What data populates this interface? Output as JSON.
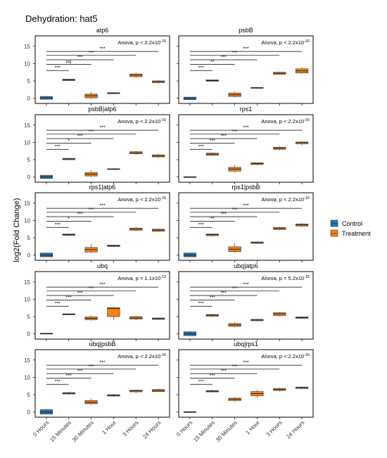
{
  "figure": {
    "title": "Dehydration: hat5",
    "ylabel": "log2(Fold Change)",
    "legend": {
      "position": "right",
      "items": [
        {
          "label": "Control",
          "color": "#1f77b4"
        },
        {
          "label": "Treatment",
          "color": "#ff7f0e"
        }
      ]
    }
  },
  "chart_data": [
    {
      "type": "box",
      "title": "atp6",
      "annotation": "Anova, p < 2.2x10",
      "annotation_exp": "-16",
      "categories": [
        "0 Hours",
        "15 Minutes",
        "30 Minutes",
        "1 Hour",
        "3 Hours",
        "24 Hours"
      ],
      "ylim": [
        -1.5,
        18
      ],
      "yticks": [
        0,
        5,
        10,
        15
      ],
      "boxes": [
        {
          "q1": -0.3,
          "median": 0.1,
          "q3": 0.5,
          "min": -0.4,
          "max": 0.6,
          "group": "Control"
        },
        {
          "q1": 5.1,
          "median": 5.3,
          "q3": 5.5,
          "min": 5.0,
          "max": 5.6,
          "group": "Treatment"
        },
        {
          "q1": 0.1,
          "median": 0.7,
          "q3": 1.2,
          "min": -0.2,
          "max": 1.9,
          "group": "Treatment"
        },
        {
          "q1": 1.3,
          "median": 1.5,
          "q3": 1.6,
          "min": 1.2,
          "max": 1.7,
          "group": "Treatment"
        },
        {
          "q1": 6.2,
          "median": 6.7,
          "q3": 7.0,
          "min": 5.9,
          "max": 7.4,
          "group": "Treatment"
        },
        {
          "q1": 4.5,
          "median": 4.8,
          "q3": 5.0,
          "min": 4.2,
          "max": 5.2,
          "group": "Treatment"
        }
      ],
      "brackets": [
        {
          "to": 1,
          "label": "***",
          "y": 8.0
        },
        {
          "to": 2,
          "label": "ns",
          "y": 9.8
        },
        {
          "to": 3,
          "label": "***",
          "y": 11.1
        },
        {
          "to": 4,
          "label": "***",
          "y": 12.4
        },
        {
          "to": 5,
          "label": "***",
          "y": 13.5
        }
      ]
    },
    {
      "type": "box",
      "title": "psbB",
      "annotation": "Anova, p < 2.2x10",
      "annotation_exp": "-16",
      "categories": [
        "0 Hours",
        "15 Minutes",
        "30 Minutes",
        "1 Hour",
        "3 Hours",
        "24 Hours"
      ],
      "ylim": [
        -1.5,
        18
      ],
      "yticks": [
        0,
        5,
        10,
        15
      ],
      "boxes": [
        {
          "q1": -0.4,
          "median": 0.0,
          "q3": 0.3,
          "min": -0.5,
          "max": 0.4,
          "group": "Control"
        },
        {
          "q1": 4.9,
          "median": 5.1,
          "q3": 5.3,
          "min": 4.8,
          "max": 5.4,
          "group": "Treatment"
        },
        {
          "q1": 0.5,
          "median": 1.0,
          "q3": 1.5,
          "min": 0.2,
          "max": 2.0,
          "group": "Treatment"
        },
        {
          "q1": 2.9,
          "median": 3.0,
          "q3": 3.1,
          "min": 2.8,
          "max": 3.2,
          "group": "Treatment"
        },
        {
          "q1": 6.9,
          "median": 7.2,
          "q3": 7.5,
          "min": 6.8,
          "max": 7.6,
          "group": "Treatment"
        },
        {
          "q1": 7.3,
          "median": 7.9,
          "q3": 8.5,
          "min": 7.0,
          "max": 8.9,
          "group": "Treatment"
        }
      ],
      "brackets": [
        {
          "to": 1,
          "label": "***",
          "y": 8.0
        },
        {
          "to": 2,
          "label": "**",
          "y": 9.8
        },
        {
          "to": 3,
          "label": "***",
          "y": 11.1
        },
        {
          "to": 4,
          "label": "***",
          "y": 12.4
        },
        {
          "to": 5,
          "label": "***",
          "y": 13.5
        }
      ]
    },
    {
      "type": "box",
      "title": "psbB|atp6",
      "annotation": "Anova, p < 2.2x10",
      "annotation_exp": "-16",
      "categories": [
        "0 Hours",
        "15 Minutes",
        "30 Minutes",
        "1 Hour",
        "3 Hours",
        "24 Hours"
      ],
      "ylim": [
        -1.5,
        18
      ],
      "yticks": [
        0,
        5,
        10,
        15
      ],
      "boxes": [
        {
          "q1": -0.4,
          "median": 0.0,
          "q3": 0.5,
          "min": -0.5,
          "max": 0.6,
          "group": "Control"
        },
        {
          "q1": 5.0,
          "median": 5.2,
          "q3": 5.4,
          "min": 4.9,
          "max": 5.5,
          "group": "Treatment"
        },
        {
          "q1": 0.3,
          "median": 0.8,
          "q3": 1.3,
          "min": 0.0,
          "max": 2.0,
          "group": "Treatment"
        },
        {
          "q1": 2.2,
          "median": 2.3,
          "q3": 2.4,
          "min": 2.1,
          "max": 2.5,
          "group": "Treatment"
        },
        {
          "q1": 6.7,
          "median": 7.0,
          "q3": 7.3,
          "min": 6.4,
          "max": 7.5,
          "group": "Treatment"
        },
        {
          "q1": 5.8,
          "median": 6.1,
          "q3": 6.4,
          "min": 5.5,
          "max": 6.7,
          "group": "Treatment"
        }
      ],
      "brackets": [
        {
          "to": 1,
          "label": "***",
          "y": 8.0
        },
        {
          "to": 2,
          "label": "*",
          "y": 9.8
        },
        {
          "to": 3,
          "label": "***",
          "y": 11.1
        },
        {
          "to": 4,
          "label": "***",
          "y": 12.4
        },
        {
          "to": 5,
          "label": "***",
          "y": 13.5
        }
      ]
    },
    {
      "type": "box",
      "title": "rps1",
      "annotation": "Anova, p < 2.2x10",
      "annotation_exp": "-16",
      "categories": [
        "0 Hours",
        "15 Minutes",
        "30 Minutes",
        "1 Hour",
        "3 Hours",
        "24 Hours"
      ],
      "ylim": [
        -1.5,
        18
      ],
      "yticks": [
        0,
        5,
        10,
        15
      ],
      "boxes": [
        {
          "q1": -0.1,
          "median": 0.0,
          "q3": 0.1,
          "min": -0.2,
          "max": 0.2,
          "group": "Control"
        },
        {
          "q1": 6.3,
          "median": 6.6,
          "q3": 6.9,
          "min": 6.1,
          "max": 7.1,
          "group": "Treatment"
        },
        {
          "q1": 1.7,
          "median": 2.3,
          "q3": 2.8,
          "min": 1.4,
          "max": 3.6,
          "group": "Treatment"
        },
        {
          "q1": 3.6,
          "median": 3.9,
          "q3": 4.1,
          "min": 3.4,
          "max": 4.2,
          "group": "Treatment"
        },
        {
          "q1": 8.0,
          "median": 8.3,
          "q3": 8.6,
          "min": 7.7,
          "max": 8.9,
          "group": "Treatment"
        },
        {
          "q1": 9.6,
          "median": 9.9,
          "q3": 10.1,
          "min": 9.2,
          "max": 10.4,
          "group": "Treatment"
        }
      ],
      "brackets": [
        {
          "to": 1,
          "label": "***",
          "y": 8.0
        },
        {
          "to": 2,
          "label": "***",
          "y": 9.8
        },
        {
          "to": 3,
          "label": "***",
          "y": 11.1
        },
        {
          "to": 4,
          "label": "***",
          "y": 12.4
        },
        {
          "to": 5,
          "label": "***",
          "y": 13.5
        }
      ]
    },
    {
      "type": "box",
      "title": "rps1|atp6",
      "annotation": "Anova, p < 2.2x10",
      "annotation_exp": "-16",
      "categories": [
        "0 Hours",
        "15 Minutes",
        "30 Minutes",
        "1 Hour",
        "3 Hours",
        "24 Hours"
      ],
      "ylim": [
        -1.5,
        18
      ],
      "yticks": [
        0,
        5,
        10,
        15
      ],
      "boxes": [
        {
          "q1": -0.5,
          "median": 0.0,
          "q3": 0.6,
          "min": -0.6,
          "max": 0.7,
          "group": "Control"
        },
        {
          "q1": 5.7,
          "median": 5.9,
          "q3": 6.1,
          "min": 5.5,
          "max": 6.2,
          "group": "Treatment"
        },
        {
          "q1": 0.9,
          "median": 1.6,
          "q3": 2.2,
          "min": 0.6,
          "max": 3.2,
          "group": "Treatment"
        },
        {
          "q1": 2.5,
          "median": 2.7,
          "q3": 2.9,
          "min": 2.3,
          "max": 3.0,
          "group": "Treatment"
        },
        {
          "q1": 7.2,
          "median": 7.5,
          "q3": 7.8,
          "min": 6.9,
          "max": 8.1,
          "group": "Treatment"
        },
        {
          "q1": 6.9,
          "median": 7.2,
          "q3": 7.5,
          "min": 6.7,
          "max": 7.7,
          "group": "Treatment"
        }
      ],
      "brackets": [
        {
          "to": 1,
          "label": "***",
          "y": 8.0
        },
        {
          "to": 2,
          "label": "*",
          "y": 9.8
        },
        {
          "to": 3,
          "label": "***",
          "y": 11.1
        },
        {
          "to": 4,
          "label": "***",
          "y": 12.4
        },
        {
          "to": 5,
          "label": "***",
          "y": 13.5
        }
      ]
    },
    {
      "type": "box",
      "title": "rps1|psbB",
      "annotation": "Anova, p < 2.2x10",
      "annotation_exp": "-16",
      "categories": [
        "0 Hours",
        "15 Minutes",
        "30 Minutes",
        "1 Hour",
        "3 Hours",
        "24 Hours"
      ],
      "ylim": [
        -1.5,
        18
      ],
      "yticks": [
        0,
        5,
        10,
        15
      ],
      "boxes": [
        {
          "q1": -0.5,
          "median": 0.0,
          "q3": 0.6,
          "min": -0.6,
          "max": 0.7,
          "group": "Control"
        },
        {
          "q1": 5.6,
          "median": 5.9,
          "q3": 6.1,
          "min": 5.4,
          "max": 6.2,
          "group": "Treatment"
        },
        {
          "q1": 1.0,
          "median": 1.7,
          "q3": 2.4,
          "min": 0.7,
          "max": 3.4,
          "group": "Treatment"
        },
        {
          "q1": 3.4,
          "median": 3.6,
          "q3": 3.8,
          "min": 3.2,
          "max": 3.9,
          "group": "Treatment"
        },
        {
          "q1": 7.4,
          "median": 7.7,
          "q3": 8.0,
          "min": 7.1,
          "max": 8.2,
          "group": "Treatment"
        },
        {
          "q1": 8.4,
          "median": 8.7,
          "q3": 9.0,
          "min": 8.1,
          "max": 9.3,
          "group": "Treatment"
        }
      ],
      "brackets": [
        {
          "to": 1,
          "label": "***",
          "y": 8.0
        },
        {
          "to": 2,
          "label": "**",
          "y": 9.8
        },
        {
          "to": 3,
          "label": "***",
          "y": 11.1
        },
        {
          "to": 4,
          "label": "***",
          "y": 12.4
        },
        {
          "to": 5,
          "label": "***",
          "y": 13.5
        }
      ]
    },
    {
      "type": "box",
      "title": "ubq",
      "annotation": "Anova, p = 1.1x10",
      "annotation_exp": "-13",
      "categories": [
        "0 Hours",
        "15 Minutes",
        "30 Minutes",
        "1 Hour",
        "3 Hours",
        "24 Hours"
      ],
      "ylim": [
        -1.5,
        18
      ],
      "yticks": [
        0,
        5,
        10,
        15
      ],
      "boxes": [
        {
          "q1": 0.0,
          "median": 0.1,
          "q3": 0.2,
          "min": -0.1,
          "max": 0.3,
          "group": "Control"
        },
        {
          "q1": 5.5,
          "median": 5.7,
          "q3": 5.8,
          "min": 5.4,
          "max": 5.9,
          "group": "Treatment"
        },
        {
          "q1": 4.1,
          "median": 4.5,
          "q3": 4.9,
          "min": 3.8,
          "max": 5.3,
          "group": "Treatment"
        },
        {
          "q1": 5.0,
          "median": 7.3,
          "q3": 7.6,
          "min": 4.0,
          "max": 7.9,
          "group": "Treatment"
        },
        {
          "q1": 4.3,
          "median": 4.6,
          "q3": 5.0,
          "min": 4.0,
          "max": 5.2,
          "group": "Treatment"
        },
        {
          "q1": 4.2,
          "median": 4.4,
          "q3": 4.6,
          "min": 4.0,
          "max": 4.8,
          "group": "Treatment"
        }
      ],
      "brackets": [
        {
          "to": 1,
          "label": "***",
          "y": 8.0
        },
        {
          "to": 2,
          "label": "***",
          "y": 9.8
        },
        {
          "to": 3,
          "label": "***",
          "y": 11.1
        },
        {
          "to": 4,
          "label": "***",
          "y": 12.4
        },
        {
          "to": 5,
          "label": "***",
          "y": 13.5
        }
      ]
    },
    {
      "type": "box",
      "title": "ubq|atp6",
      "annotation": "Anova, p = 5.2x10",
      "annotation_exp": "-15",
      "categories": [
        "0 Hours",
        "15 Minutes",
        "30 Minutes",
        "1 Hour",
        "3 Hours",
        "24 Hours"
      ],
      "ylim": [
        -1.5,
        18
      ],
      "yticks": [
        0,
        5,
        10,
        15
      ],
      "boxes": [
        {
          "q1": -0.5,
          "median": 0.0,
          "q3": 0.6,
          "min": -0.6,
          "max": 0.8,
          "group": "Control"
        },
        {
          "q1": 5.1,
          "median": 5.4,
          "q3": 5.6,
          "min": 4.9,
          "max": 5.8,
          "group": "Treatment"
        },
        {
          "q1": 2.2,
          "median": 2.6,
          "q3": 3.0,
          "min": 1.9,
          "max": 3.4,
          "group": "Treatment"
        },
        {
          "q1": 3.8,
          "median": 4.0,
          "q3": 4.2,
          "min": 3.6,
          "max": 4.4,
          "group": "Treatment"
        },
        {
          "q1": 5.3,
          "median": 5.8,
          "q3": 6.1,
          "min": 5.0,
          "max": 6.3,
          "group": "Treatment"
        },
        {
          "q1": 4.5,
          "median": 4.7,
          "q3": 4.9,
          "min": 4.3,
          "max": 5.1,
          "group": "Treatment"
        }
      ],
      "brackets": [
        {
          "to": 1,
          "label": "***",
          "y": 8.0
        },
        {
          "to": 2,
          "label": "***",
          "y": 9.8
        },
        {
          "to": 3,
          "label": "***",
          "y": 11.1
        },
        {
          "to": 4,
          "label": "***",
          "y": 12.4
        },
        {
          "to": 5,
          "label": "***",
          "y": 13.5
        }
      ]
    },
    {
      "type": "box",
      "title": "ubq|psbB",
      "annotation": "Anova, p < 2.2x10",
      "annotation_exp": "-16",
      "categories": [
        "0 Hours",
        "15 Minutes",
        "30 Minutes",
        "1 Hour",
        "3 Hours",
        "24 Hours"
      ],
      "ylim": [
        -1.5,
        18
      ],
      "yticks": [
        0,
        5,
        10,
        15
      ],
      "boxes": [
        {
          "q1": -0.6,
          "median": 0.0,
          "q3": 0.7,
          "min": -0.7,
          "max": 0.9,
          "group": "Control"
        },
        {
          "q1": 5.2,
          "median": 5.4,
          "q3": 5.6,
          "min": 5.0,
          "max": 5.8,
          "group": "Treatment"
        },
        {
          "q1": 2.4,
          "median": 2.8,
          "q3": 3.3,
          "min": 2.0,
          "max": 3.9,
          "group": "Treatment"
        },
        {
          "q1": 4.6,
          "median": 4.8,
          "q3": 5.0,
          "min": 4.4,
          "max": 5.2,
          "group": "Treatment"
        },
        {
          "q1": 5.8,
          "median": 6.1,
          "q3": 6.3,
          "min": 5.5,
          "max": 6.5,
          "group": "Treatment"
        },
        {
          "q1": 5.9,
          "median": 6.2,
          "q3": 6.5,
          "min": 5.7,
          "max": 6.8,
          "group": "Treatment"
        }
      ],
      "brackets": [
        {
          "to": 1,
          "label": "***",
          "y": 8.0
        },
        {
          "to": 2,
          "label": "***",
          "y": 9.8
        },
        {
          "to": 3,
          "label": "***",
          "y": 11.1
        },
        {
          "to": 4,
          "label": "***",
          "y": 12.4
        },
        {
          "to": 5,
          "label": "***",
          "y": 13.5
        }
      ]
    },
    {
      "type": "box",
      "title": "ubq|rps1",
      "annotation": "Anova, p < 2.2x10",
      "annotation_exp": "-16",
      "categories": [
        "0 Hours",
        "15 Minutes",
        "30 Minutes",
        "1 Hour",
        "3 Hours",
        "24 Hours"
      ],
      "ylim": [
        -1.5,
        18
      ],
      "yticks": [
        0,
        5,
        10,
        15
      ],
      "boxes": [
        {
          "q1": -0.1,
          "median": 0.0,
          "q3": 0.1,
          "min": -0.2,
          "max": 0.2,
          "group": "Control"
        },
        {
          "q1": 5.8,
          "median": 6.0,
          "q3": 6.2,
          "min": 5.6,
          "max": 6.4,
          "group": "Treatment"
        },
        {
          "q1": 3.3,
          "median": 3.7,
          "q3": 4.0,
          "min": 2.9,
          "max": 4.3,
          "group": "Treatment"
        },
        {
          "q1": 4.7,
          "median": 5.3,
          "q3": 5.9,
          "min": 4.0,
          "max": 6.4,
          "group": "Treatment"
        },
        {
          "q1": 6.2,
          "median": 6.5,
          "q3": 6.8,
          "min": 5.9,
          "max": 7.1,
          "group": "Treatment"
        },
        {
          "q1": 6.8,
          "median": 7.0,
          "q3": 7.2,
          "min": 6.6,
          "max": 7.4,
          "group": "Treatment"
        }
      ],
      "brackets": [
        {
          "to": 1,
          "label": "***",
          "y": 8.0
        },
        {
          "to": 2,
          "label": "***",
          "y": 9.8
        },
        {
          "to": 3,
          "label": "***",
          "y": 11.1
        },
        {
          "to": 4,
          "label": "***",
          "y": 12.4
        },
        {
          "to": 5,
          "label": "***",
          "y": 13.5
        }
      ]
    }
  ]
}
